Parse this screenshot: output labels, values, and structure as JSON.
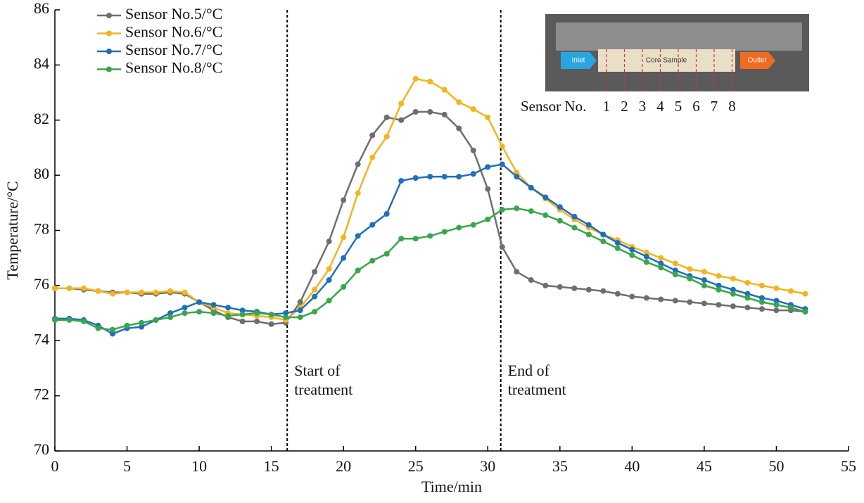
{
  "chart_data": {
    "type": "line",
    "xlabel": "Time/min",
    "ylabel": "Temperature/°C",
    "x": [
      0,
      1,
      2,
      3,
      4,
      5,
      6,
      7,
      8,
      9,
      10,
      11,
      12,
      13,
      14,
      15,
      16,
      17,
      18,
      19,
      20,
      21,
      22,
      23,
      24,
      25,
      26,
      27,
      28,
      29,
      30,
      31,
      32,
      33,
      34,
      35,
      36,
      37,
      38,
      39,
      40,
      41,
      42,
      43,
      44,
      45,
      46,
      47,
      48,
      49,
      50,
      51,
      52
    ],
    "xlim": [
      0,
      55
    ],
    "xticks": [
      0,
      5,
      10,
      15,
      20,
      25,
      30,
      35,
      40,
      45,
      50,
      55
    ],
    "ylim": [
      70,
      86
    ],
    "yticks": [
      70,
      72,
      74,
      76,
      78,
      80,
      82,
      84,
      86
    ],
    "grid": false,
    "legend": "upper left",
    "series": [
      {
        "name": "Sensor No.5/°C",
        "color": "#6e6e6e",
        "values": [
          75.9,
          75.9,
          75.85,
          75.8,
          75.75,
          75.75,
          75.7,
          75.7,
          75.75,
          75.7,
          75.4,
          75.1,
          74.85,
          74.7,
          74.7,
          74.6,
          74.65,
          75.4,
          76.5,
          77.6,
          79.1,
          80.4,
          81.45,
          82.1,
          82.0,
          82.3,
          82.3,
          82.2,
          81.7,
          80.9,
          79.5,
          77.4,
          76.5,
          76.2,
          76.0,
          75.95,
          75.9,
          75.85,
          75.8,
          75.7,
          75.6,
          75.55,
          75.5,
          75.45,
          75.4,
          75.35,
          75.3,
          75.25,
          75.2,
          75.15,
          75.1,
          75.1,
          75.05
        ]
      },
      {
        "name": "Sensor No.6/°C",
        "color": "#f5b41e",
        "values": [
          75.9,
          75.9,
          75.9,
          75.8,
          75.7,
          75.75,
          75.75,
          75.75,
          75.8,
          75.75,
          75.4,
          75.2,
          75.0,
          74.95,
          74.9,
          74.85,
          74.75,
          75.2,
          75.85,
          76.6,
          77.75,
          79.35,
          80.65,
          81.4,
          82.6,
          83.5,
          83.4,
          83.1,
          82.65,
          82.4,
          82.1,
          81.05,
          80.1,
          79.55,
          79.15,
          78.75,
          78.4,
          78.1,
          77.85,
          77.65,
          77.4,
          77.2,
          77.0,
          76.8,
          76.6,
          76.5,
          76.35,
          76.25,
          76.1,
          76.0,
          75.9,
          75.8,
          75.7
        ]
      },
      {
        "name": "Sensor No.7/°C",
        "color": "#1f6fbf",
        "values": [
          74.8,
          74.8,
          74.75,
          74.55,
          74.25,
          74.45,
          74.5,
          74.75,
          75.0,
          75.2,
          75.4,
          75.3,
          75.2,
          75.1,
          75.05,
          74.95,
          75.0,
          75.1,
          75.6,
          76.2,
          77.0,
          77.8,
          78.2,
          78.6,
          79.8,
          79.9,
          79.95,
          79.95,
          79.95,
          80.05,
          80.3,
          80.4,
          79.95,
          79.55,
          79.2,
          78.85,
          78.5,
          78.2,
          77.85,
          77.55,
          77.3,
          77.05,
          76.8,
          76.55,
          76.35,
          76.2,
          76.0,
          75.85,
          75.7,
          75.55,
          75.45,
          75.3,
          75.15
        ]
      },
      {
        "name": "Sensor No.8/°C",
        "color": "#3aa64a",
        "values": [
          74.75,
          74.75,
          74.7,
          74.45,
          74.4,
          74.55,
          74.65,
          74.75,
          74.85,
          75.0,
          75.05,
          75.0,
          74.9,
          74.95,
          75.0,
          74.95,
          74.85,
          74.85,
          75.05,
          75.45,
          75.95,
          76.55,
          76.9,
          77.15,
          77.7,
          77.7,
          77.8,
          77.95,
          78.1,
          78.2,
          78.4,
          78.75,
          78.8,
          78.7,
          78.55,
          78.35,
          78.1,
          77.85,
          77.6,
          77.35,
          77.1,
          76.85,
          76.65,
          76.4,
          76.25,
          76.0,
          75.85,
          75.7,
          75.55,
          75.4,
          75.3,
          75.2,
          75.05
        ]
      }
    ],
    "annotations": [
      {
        "x": 16.1,
        "text": [
          "Start of",
          "treatment"
        ]
      },
      {
        "x": 30.9,
        "text": [
          "End of",
          "treatment"
        ]
      }
    ]
  },
  "inset": {
    "inlet": "Inlet",
    "core": "Core Sample",
    "outlet": "Outlet",
    "sensor_label": "Sensor No.",
    "sensor_numbers": [
      "1",
      "2",
      "3",
      "4",
      "5",
      "6",
      "7",
      "8"
    ]
  }
}
